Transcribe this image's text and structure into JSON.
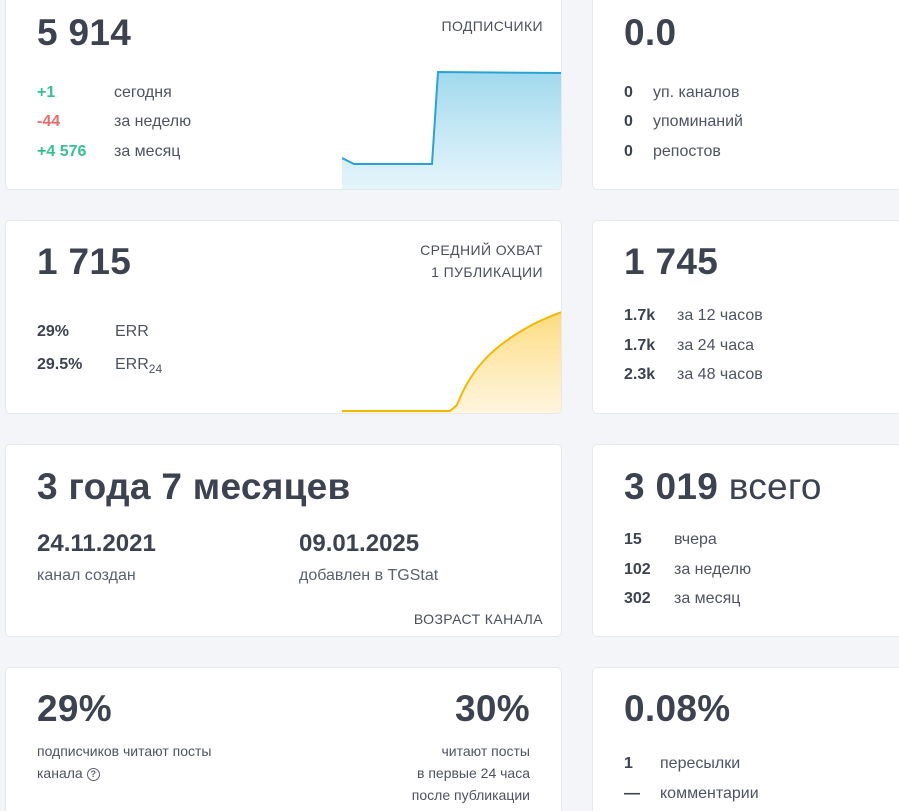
{
  "subscribers": {
    "total": "5 914",
    "title": "ПОДПИСЧИКИ",
    "rows": [
      {
        "value": "+1",
        "label": "сегодня"
      },
      {
        "value": "-44",
        "label": "за неделю"
      },
      {
        "value": "+4 576",
        "label": "за месяц"
      }
    ],
    "colors": {
      "line": "#2aa3d4",
      "fill": "#a9dcef"
    }
  },
  "citation": {
    "index": "0.0",
    "rows": [
      {
        "value": "0",
        "label": "уп. каналов"
      },
      {
        "value": "0",
        "label": "упоминаний"
      },
      {
        "value": "0",
        "label": "репостов"
      }
    ]
  },
  "reach": {
    "total": "1 715",
    "title_line1": "СРЕДНИЙ ОХВАТ",
    "title_line2": "1 ПУБЛИКАЦИИ",
    "rows": [
      {
        "value": "29%",
        "label": "ERR"
      },
      {
        "value": "29.5%",
        "label": "ERR",
        "label_sub": "24"
      }
    ],
    "colors": {
      "line": "#f5b800",
      "fill": "#fde7a8"
    }
  },
  "views": {
    "total": "1 745",
    "rows": [
      {
        "value": "1.7k",
        "label": "за 12 часов"
      },
      {
        "value": "1.7k",
        "label": "за 24 часа"
      },
      {
        "value": "2.3k",
        "label": "за 48 часов"
      }
    ]
  },
  "age": {
    "title": "3 года 7 месяцев",
    "created_date": "24.11.2021",
    "created_label": "канал создан",
    "added_date": "09.01.2025",
    "added_label": "добавлен в TGStat",
    "caption": "ВОЗРАСТ КАНАЛА"
  },
  "posts": {
    "total_number": "3 019",
    "total_word": "всего",
    "rows": [
      {
        "value": "15",
        "label": "вчера"
      },
      {
        "value": "102",
        "label": "за неделю"
      },
      {
        "value": "302",
        "label": "за месяц"
      }
    ]
  },
  "read": {
    "percent_left": "29%",
    "left_line1": "подписчиков читают посты",
    "left_line2": "канала",
    "percent_right": "30%",
    "right_line1": "читают посты",
    "right_line2": "в первые 24 часа",
    "right_line3": "после публикации"
  },
  "engagement": {
    "percent": "0.08%",
    "rows": [
      {
        "value": "1",
        "label": "пересылки"
      },
      {
        "value": "—",
        "label": "комментарии"
      }
    ]
  }
}
